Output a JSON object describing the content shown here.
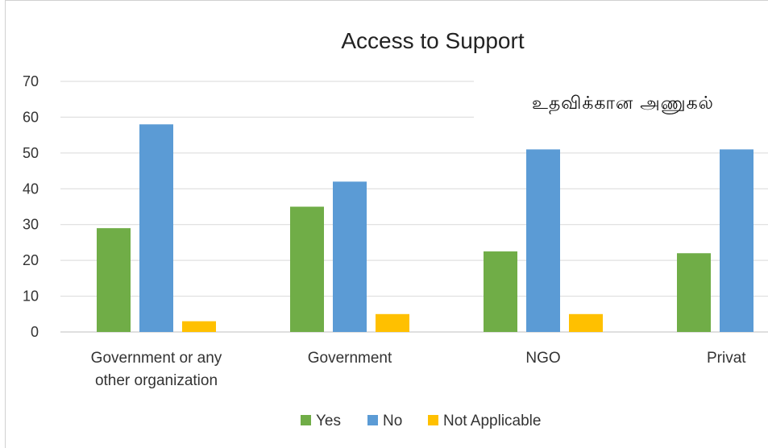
{
  "chart_data": {
    "type": "bar",
    "title": "Access to Support",
    "categories": [
      "Government or any other organization",
      "Government",
      "NGO",
      "Privat"
    ],
    "category_lines": [
      [
        "Government or any",
        "other organization"
      ],
      [
        "Government"
      ],
      [
        "NGO"
      ],
      [
        "Privat"
      ]
    ],
    "series": [
      {
        "name": "Yes",
        "color": "#70ad47",
        "values": [
          29,
          35,
          22.5,
          22
        ]
      },
      {
        "name": "No",
        "color": "#5b9bd5",
        "values": [
          58,
          42,
          51,
          51
        ]
      },
      {
        "name": "Not Applicable",
        "color": "#ffc000",
        "values": [
          3,
          5,
          5,
          null
        ]
      }
    ],
    "ylim": [
      0,
      70
    ],
    "yticks": [
      "0",
      "10",
      "20",
      "30",
      "40",
      "50",
      "60",
      "70"
    ],
    "grid": true,
    "legend_position": "bottom"
  },
  "overlay_label": "உதவிக்கான அணுகல்"
}
